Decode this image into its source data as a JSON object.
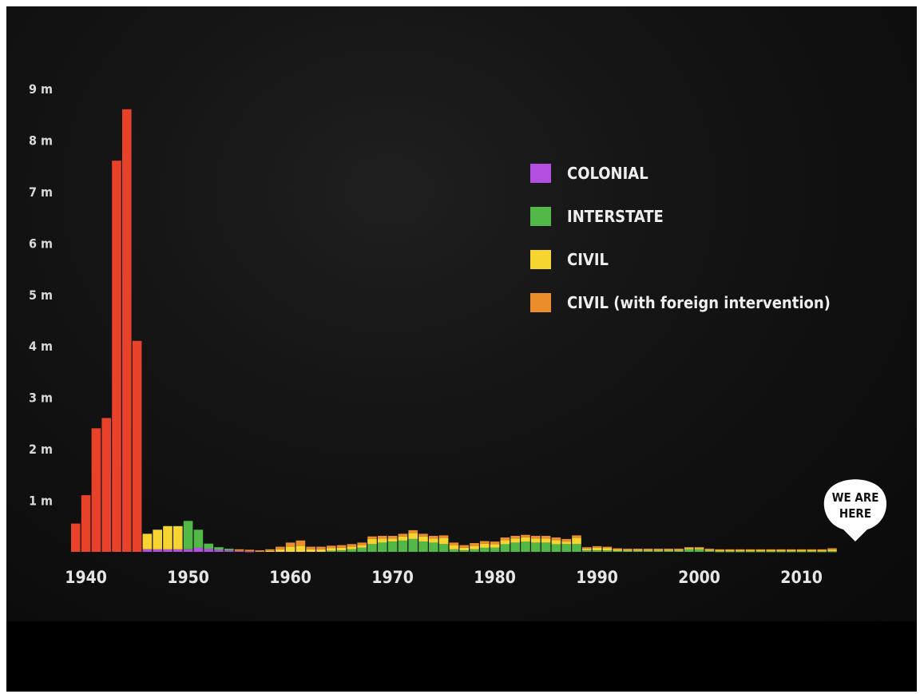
{
  "chart_data": {
    "type": "bar",
    "stacked": true,
    "x_start": 1939,
    "x_end": 2013,
    "ylim": [
      0,
      9
    ],
    "y_ticks": [
      "9 m",
      "8 m",
      "7 m",
      "6 m",
      "5 m",
      "4 m",
      "3 m",
      "2 m",
      "1 m"
    ],
    "y_tick_values": [
      9,
      8,
      7,
      6,
      5,
      4,
      3,
      2,
      1
    ],
    "x_ticks": [
      "1940",
      "1950",
      "1960",
      "1970",
      "1980",
      "1990",
      "2000",
      "2010"
    ],
    "x_tick_values": [
      1940,
      1950,
      1960,
      1970,
      1980,
      1990,
      2000,
      2010
    ],
    "legend": [
      {
        "name": "COLONIAL",
        "color": "#b24fe0"
      },
      {
        "name": "INTERSTATE",
        "color": "#52b848"
      },
      {
        "name": "CIVIL",
        "color": "#f6d531"
      },
      {
        "name": "CIVIL (with foreign intervention)",
        "color": "#ea8d2a"
      }
    ],
    "callout": [
      "WE ARE",
      "HERE"
    ],
    "series": [
      {
        "key": "ww2",
        "color": "#e8422a",
        "values": [
          0.55,
          1.1,
          2.4,
          2.6,
          7.6,
          8.6,
          4.1,
          0,
          0,
          0,
          0,
          0,
          0,
          0,
          0,
          0,
          0,
          0,
          0,
          0,
          0,
          0,
          0,
          0,
          0,
          0,
          0,
          0,
          0,
          0,
          0,
          0,
          0,
          0,
          0,
          0,
          0,
          0,
          0,
          0,
          0,
          0,
          0,
          0,
          0,
          0,
          0,
          0,
          0,
          0,
          0,
          0,
          0,
          0,
          0,
          0,
          0,
          0,
          0,
          0,
          0,
          0,
          0,
          0,
          0,
          0,
          0,
          0,
          0,
          0,
          0,
          0,
          0,
          0,
          0
        ]
      },
      {
        "key": "colonial",
        "color": "#b24fe0",
        "values": [
          0,
          0,
          0,
          0,
          0,
          0,
          0,
          0.05,
          0.05,
          0.05,
          0.05,
          0.05,
          0.08,
          0.06,
          0.04,
          0.03,
          0.02,
          0.01,
          0,
          0,
          0,
          0,
          0,
          0,
          0,
          0,
          0,
          0,
          0,
          0,
          0,
          0,
          0,
          0,
          0,
          0,
          0,
          0,
          0,
          0,
          0,
          0,
          0,
          0,
          0,
          0,
          0,
          0,
          0,
          0,
          0,
          0,
          0,
          0,
          0,
          0,
          0,
          0,
          0,
          0,
          0,
          0,
          0,
          0,
          0,
          0,
          0,
          0,
          0,
          0,
          0,
          0,
          0,
          0,
          0
        ]
      },
      {
        "key": "interstate",
        "color": "#52b848",
        "values": [
          0,
          0,
          0,
          0,
          0,
          0,
          0,
          0,
          0,
          0,
          0,
          0.55,
          0.35,
          0.1,
          0.05,
          0.03,
          0,
          0,
          0,
          0,
          0,
          0,
          0,
          0,
          0,
          0.02,
          0.03,
          0.05,
          0.08,
          0.15,
          0.18,
          0.2,
          0.22,
          0.25,
          0.2,
          0.18,
          0.15,
          0.05,
          0.03,
          0.05,
          0.08,
          0.08,
          0.15,
          0.18,
          0.2,
          0.18,
          0.18,
          0.15,
          0.15,
          0.15,
          0.03,
          0.03,
          0.03,
          0.02,
          0.02,
          0.02,
          0.02,
          0.02,
          0.02,
          0.02,
          0.05,
          0.05,
          0.02,
          0.01,
          0.01,
          0.01,
          0.01,
          0.01,
          0.01,
          0.01,
          0.01,
          0.01,
          0.01,
          0.01,
          0.01
        ]
      },
      {
        "key": "civil",
        "color": "#f6d531",
        "values": [
          0,
          0,
          0,
          0,
          0,
          0,
          0,
          0.3,
          0.38,
          0.45,
          0.45,
          0,
          0,
          0,
          0,
          0,
          0,
          0,
          0,
          0.02,
          0.05,
          0.1,
          0.12,
          0.05,
          0.05,
          0.05,
          0.05,
          0.05,
          0.05,
          0.1,
          0.08,
          0.06,
          0.08,
          0.12,
          0.1,
          0.08,
          0.12,
          0.08,
          0.05,
          0.07,
          0.08,
          0.07,
          0.08,
          0.08,
          0.08,
          0.08,
          0.08,
          0.08,
          0.05,
          0.12,
          0.03,
          0.05,
          0.04,
          0.03,
          0.02,
          0.02,
          0.02,
          0.02,
          0.02,
          0.02,
          0.02,
          0.02,
          0.02,
          0.02,
          0.02,
          0.02,
          0.02,
          0.02,
          0.02,
          0.02,
          0.02,
          0.02,
          0.02,
          0.02,
          0.03
        ]
      },
      {
        "key": "civil_foreign",
        "color": "#ea8d2a",
        "values": [
          0,
          0,
          0,
          0,
          0,
          0,
          0,
          0,
          0,
          0,
          0,
          0,
          0,
          0,
          0,
          0,
          0.03,
          0.03,
          0.03,
          0.03,
          0.05,
          0.08,
          0.1,
          0.05,
          0.05,
          0.05,
          0.05,
          0.05,
          0.05,
          0.05,
          0.05,
          0.05,
          0.05,
          0.05,
          0.05,
          0.05,
          0.05,
          0.05,
          0.05,
          0.05,
          0.05,
          0.05,
          0.05,
          0.05,
          0.05,
          0.05,
          0.05,
          0.05,
          0.05,
          0.05,
          0.03,
          0.03,
          0.03,
          0.02,
          0.02,
          0.02,
          0.02,
          0.02,
          0.02,
          0.02,
          0.02,
          0.02,
          0.02,
          0.02,
          0.02,
          0.02,
          0.02,
          0.02,
          0.02,
          0.02,
          0.02,
          0.02,
          0.02,
          0.02,
          0.03
        ]
      }
    ]
  }
}
